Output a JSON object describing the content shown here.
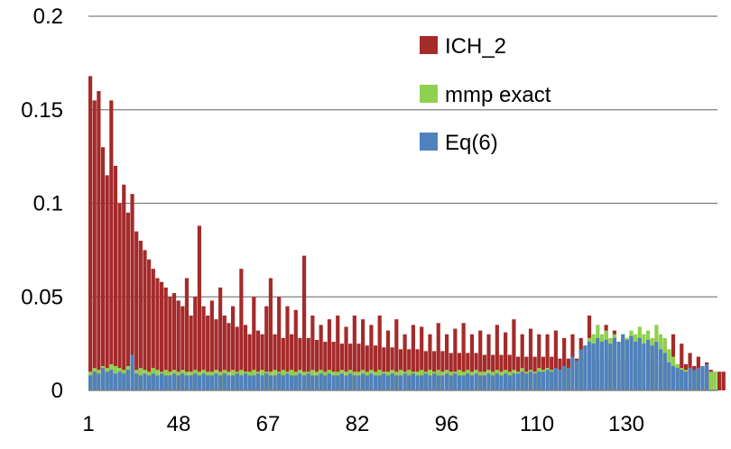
{
  "chart_data": {
    "type": "bar",
    "title": "",
    "xlabel": "",
    "ylabel": "",
    "ylim": [
      0,
      0.2
    ],
    "y_ticks": [
      "0",
      "0.05",
      "0.1",
      "0.15",
      "0.2"
    ],
    "y_tick_values": [
      0,
      0.05,
      0.1,
      0.15,
      0.2
    ],
    "x_ticks": [
      "1",
      "48",
      "67",
      "82",
      "96",
      "110",
      "130"
    ],
    "x_tick_positions": [
      1,
      48,
      67,
      82,
      96,
      110,
      130
    ],
    "x_range": [
      1,
      150
    ],
    "grid": "horizontal",
    "legend_position": "top-right",
    "series": [
      {
        "name": "ICH_2",
        "color": "#a52a2a",
        "values": [
          0.168,
          0.155,
          0.16,
          0.13,
          0.115,
          0.155,
          0.12,
          0.1,
          0.11,
          0.095,
          0.105,
          0.085,
          0.08,
          0.075,
          0.07,
          0.065,
          0.06,
          0.058,
          0.055,
          0.05,
          0.052,
          0.048,
          0.045,
          0.06,
          0.04,
          0.05,
          0.088,
          0.045,
          0.04,
          0.048,
          0.038,
          0.055,
          0.04,
          0.036,
          0.045,
          0.034,
          0.065,
          0.035,
          0.03,
          0.05,
          0.032,
          0.03,
          0.045,
          0.06,
          0.03,
          0.05,
          0.028,
          0.045,
          0.03,
          0.043,
          0.028,
          0.072,
          0.028,
          0.04,
          0.027,
          0.035,
          0.026,
          0.038,
          0.026,
          0.04,
          0.025,
          0.034,
          0.025,
          0.04,
          0.025,
          0.038,
          0.024,
          0.035,
          0.024,
          0.04,
          0.023,
          0.032,
          0.023,
          0.038,
          0.022,
          0.03,
          0.022,
          0.035,
          0.022,
          0.034,
          0.021,
          0.03,
          0.021,
          0.036,
          0.021,
          0.03,
          0.02,
          0.033,
          0.02,
          0.036,
          0.02,
          0.03,
          0.02,
          0.032,
          0.019,
          0.03,
          0.019,
          0.035,
          0.019,
          0.031,
          0.019,
          0.038,
          0.018,
          0.03,
          0.018,
          0.033,
          0.018,
          0.03,
          0.018,
          0.03,
          0.018,
          0.032,
          0.017,
          0.028,
          0.017,
          0.03,
          0.017,
          0.028,
          0.017,
          0.04,
          0.017,
          0.028,
          0.017,
          0.035,
          0.016,
          0.032,
          0.016,
          0.028,
          0.016,
          0.03,
          0.016,
          0.028,
          0.016,
          0.027,
          0.015,
          0.028,
          0.015,
          0.026,
          0.015,
          0.03,
          0.014,
          0.025,
          0.014,
          0.02,
          0.013,
          0.018,
          0.012,
          0.015,
          0.011,
          0.01,
          0.01,
          0.01
        ]
      },
      {
        "name": "mmp exact",
        "color": "#8fd14f",
        "values": [
          0.01,
          0.012,
          0.011,
          0.013,
          0.012,
          0.014,
          0.013,
          0.012,
          0.011,
          0.013,
          0.012,
          0.011,
          0.012,
          0.011,
          0.01,
          0.012,
          0.011,
          0.01,
          0.011,
          0.01,
          0.011,
          0.01,
          0.011,
          0.01,
          0.01,
          0.011,
          0.01,
          0.011,
          0.01,
          0.01,
          0.011,
          0.01,
          0.011,
          0.01,
          0.011,
          0.01,
          0.011,
          0.01,
          0.01,
          0.011,
          0.01,
          0.011,
          0.01,
          0.01,
          0.011,
          0.01,
          0.011,
          0.01,
          0.011,
          0.01,
          0.011,
          0.01,
          0.01,
          0.011,
          0.01,
          0.011,
          0.01,
          0.011,
          0.01,
          0.01,
          0.011,
          0.01,
          0.011,
          0.01,
          0.01,
          0.011,
          0.01,
          0.011,
          0.01,
          0.011,
          0.01,
          0.01,
          0.011,
          0.01,
          0.011,
          0.01,
          0.011,
          0.01,
          0.01,
          0.011,
          0.01,
          0.011,
          0.01,
          0.011,
          0.01,
          0.011,
          0.01,
          0.01,
          0.011,
          0.01,
          0.011,
          0.01,
          0.011,
          0.01,
          0.01,
          0.011,
          0.01,
          0.011,
          0.01,
          0.011,
          0.01,
          0.011,
          0.01,
          0.012,
          0.01,
          0.011,
          0.01,
          0.012,
          0.011,
          0.012,
          0.011,
          0.012,
          0.011,
          0.013,
          0.012,
          0.016,
          0.015,
          0.02,
          0.024,
          0.028,
          0.03,
          0.035,
          0.03,
          0.032,
          0.028,
          0.03,
          0.026,
          0.03,
          0.028,
          0.032,
          0.03,
          0.034,
          0.03,
          0.032,
          0.028,
          0.035,
          0.03,
          0.028,
          0.022,
          0.018,
          0.014,
          0.012,
          0.011,
          0.01,
          0.01,
          0.01,
          0.01,
          0.01,
          0.01,
          0.01
        ]
      },
      {
        "name": "Eq(6)",
        "color": "#4f81bd",
        "values": [
          0.008,
          0.01,
          0.009,
          0.012,
          0.01,
          0.011,
          0.009,
          0.01,
          0.009,
          0.011,
          0.019,
          0.009,
          0.008,
          0.009,
          0.008,
          0.009,
          0.008,
          0.009,
          0.008,
          0.008,
          0.009,
          0.008,
          0.009,
          0.008,
          0.008,
          0.009,
          0.008,
          0.009,
          0.008,
          0.008,
          0.009,
          0.008,
          0.009,
          0.008,
          0.008,
          0.009,
          0.008,
          0.009,
          0.008,
          0.008,
          0.009,
          0.008,
          0.009,
          0.008,
          0.008,
          0.009,
          0.008,
          0.009,
          0.008,
          0.008,
          0.009,
          0.008,
          0.009,
          0.008,
          0.008,
          0.009,
          0.008,
          0.009,
          0.008,
          0.008,
          0.009,
          0.008,
          0.009,
          0.008,
          0.008,
          0.009,
          0.008,
          0.009,
          0.008,
          0.008,
          0.009,
          0.008,
          0.009,
          0.008,
          0.008,
          0.009,
          0.008,
          0.009,
          0.008,
          0.008,
          0.009,
          0.008,
          0.009,
          0.008,
          0.008,
          0.009,
          0.008,
          0.009,
          0.008,
          0.008,
          0.009,
          0.008,
          0.009,
          0.008,
          0.008,
          0.009,
          0.008,
          0.009,
          0.008,
          0.009,
          0.008,
          0.009,
          0.009,
          0.01,
          0.009,
          0.01,
          0.009,
          0.01,
          0.01,
          0.011,
          0.01,
          0.012,
          0.011,
          0.013,
          0.012,
          0.018,
          0.016,
          0.022,
          0.024,
          0.026,
          0.025,
          0.028,
          0.026,
          0.027,
          0.025,
          0.028,
          0.026,
          0.03,
          0.027,
          0.029,
          0.026,
          0.028,
          0.025,
          0.027,
          0.024,
          0.026,
          0.022,
          0.02,
          0.015,
          0.013,
          0.012,
          0.011,
          0.01,
          0.012,
          0.011,
          0.012,
          0.013,
          0.014
        ]
      }
    ]
  }
}
